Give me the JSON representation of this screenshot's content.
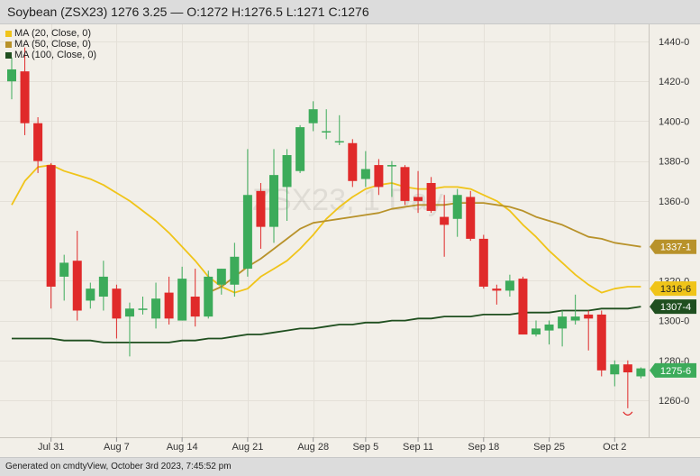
{
  "header": {
    "title": "Soybean (ZSX23) 1276 3.25 — O:1272 H:1276.5 L:1271 C:1276"
  },
  "legend": [
    {
      "label": "MA (20, Close, 0)",
      "color": "#f0c419"
    },
    {
      "label": "MA (50, Close, 0)",
      "color": "#b8922a"
    },
    {
      "label": "MA (100, Close, 0)",
      "color": "#1f4f1f"
    }
  ],
  "footer": {
    "text": "Generated on cmdtyView, October 3rd 2023, 7:45:52 pm"
  },
  "chart_data": {
    "type": "candlestick",
    "watermark": "ZSX23, 1 Day",
    "ylim": [
      1242,
      1450
    ],
    "y_ticks": [
      {
        "value": 1440,
        "label": "1440-0"
      },
      {
        "value": 1420,
        "label": "1420-0"
      },
      {
        "value": 1400,
        "label": "1400-0"
      },
      {
        "value": 1380,
        "label": "1380-0"
      },
      {
        "value": 1360,
        "label": "1360-0"
      },
      {
        "value": 1320,
        "label": "1320-0"
      },
      {
        "value": 1300,
        "label": "1300-0"
      },
      {
        "value": 1280,
        "label": "1280-0"
      },
      {
        "value": 1260,
        "label": "1260-0"
      }
    ],
    "x_ticks": [
      {
        "index": 3,
        "label": "Jul 31"
      },
      {
        "index": 8,
        "label": "Aug 7"
      },
      {
        "index": 13,
        "label": "Aug 14"
      },
      {
        "index": 18,
        "label": "Aug 21"
      },
      {
        "index": 23,
        "label": "Aug 28"
      },
      {
        "index": 27,
        "label": "Sep 5"
      },
      {
        "index": 31,
        "label": "Sep 11"
      },
      {
        "index": 36,
        "label": "Sep 18"
      },
      {
        "index": 41,
        "label": "Sep 25"
      },
      {
        "index": 46,
        "label": "Oct 2"
      }
    ],
    "candles": [
      {
        "o": 1420,
        "h": 1432,
        "l": 1411,
        "c": 1426
      },
      {
        "o": 1425,
        "h": 1437,
        "l": 1393,
        "c": 1399
      },
      {
        "o": 1399,
        "h": 1402,
        "l": 1374,
        "c": 1380
      },
      {
        "o": 1378,
        "h": 1379,
        "l": 1306,
        "c": 1317
      },
      {
        "o": 1322,
        "h": 1333,
        "l": 1310,
        "c": 1329
      },
      {
        "o": 1330,
        "h": 1345,
        "l": 1300,
        "c": 1305
      },
      {
        "o": 1310,
        "h": 1319,
        "l": 1306,
        "c": 1316
      },
      {
        "o": 1312,
        "h": 1330,
        "l": 1305,
        "c": 1322
      },
      {
        "o": 1316,
        "h": 1318,
        "l": 1291,
        "c": 1301
      },
      {
        "o": 1302,
        "h": 1309,
        "l": 1282,
        "c": 1306
      },
      {
        "o": 1306,
        "h": 1312,
        "l": 1303,
        "c": 1306
      },
      {
        "o": 1301,
        "h": 1319,
        "l": 1296,
        "c": 1311
      },
      {
        "o": 1314,
        "h": 1322,
        "l": 1298,
        "c": 1301
      },
      {
        "o": 1300,
        "h": 1327,
        "l": 1300,
        "c": 1321
      },
      {
        "o": 1312,
        "h": 1326,
        "l": 1297,
        "c": 1302
      },
      {
        "o": 1302,
        "h": 1325,
        "l": 1301,
        "c": 1322
      },
      {
        "o": 1318,
        "h": 1326,
        "l": 1313,
        "c": 1326
      },
      {
        "o": 1318,
        "h": 1339,
        "l": 1312,
        "c": 1332
      },
      {
        "o": 1326,
        "h": 1386,
        "l": 1322,
        "c": 1363
      },
      {
        "o": 1365,
        "h": 1369,
        "l": 1336,
        "c": 1347
      },
      {
        "o": 1347,
        "h": 1386,
        "l": 1339,
        "c": 1373
      },
      {
        "o": 1367,
        "h": 1386,
        "l": 1350,
        "c": 1383
      },
      {
        "o": 1375,
        "h": 1398,
        "l": 1374,
        "c": 1397
      },
      {
        "o": 1399,
        "h": 1410,
        "l": 1395,
        "c": 1406
      },
      {
        "o": 1395,
        "h": 1406,
        "l": 1391,
        "c": 1395
      },
      {
        "o": 1390,
        "h": 1403,
        "l": 1388,
        "c": 1390
      },
      {
        "o": 1389,
        "h": 1391,
        "l": 1367,
        "c": 1370
      },
      {
        "o": 1371,
        "h": 1385,
        "l": 1367,
        "c": 1376
      },
      {
        "o": 1378,
        "h": 1381,
        "l": 1363,
        "c": 1367
      },
      {
        "o": 1378,
        "h": 1380,
        "l": 1362,
        "c": 1378
      },
      {
        "o": 1377,
        "h": 1378,
        "l": 1358,
        "c": 1360
      },
      {
        "o": 1362,
        "h": 1375,
        "l": 1354,
        "c": 1360
      },
      {
        "o": 1369,
        "h": 1372,
        "l": 1354,
        "c": 1355
      },
      {
        "o": 1352,
        "h": 1363,
        "l": 1332,
        "c": 1348
      },
      {
        "o": 1351,
        "h": 1366,
        "l": 1342,
        "c": 1363
      },
      {
        "o": 1362,
        "h": 1365,
        "l": 1340,
        "c": 1341
      },
      {
        "o": 1341,
        "h": 1343,
        "l": 1316,
        "c": 1317
      },
      {
        "o": 1316,
        "h": 1318,
        "l": 1308,
        "c": 1315
      },
      {
        "o": 1315,
        "h": 1323,
        "l": 1312,
        "c": 1320
      },
      {
        "o": 1321,
        "h": 1322,
        "l": 1293,
        "c": 1293
      },
      {
        "o": 1293,
        "h": 1300,
        "l": 1292,
        "c": 1296
      },
      {
        "o": 1295,
        "h": 1300,
        "l": 1288,
        "c": 1298
      },
      {
        "o": 1296,
        "h": 1305,
        "l": 1287,
        "c": 1302
      },
      {
        "o": 1300,
        "h": 1313,
        "l": 1298,
        "c": 1302
      },
      {
        "o": 1303,
        "h": 1305,
        "l": 1285,
        "c": 1301
      },
      {
        "o": 1303,
        "h": 1305,
        "l": 1272,
        "c": 1275
      },
      {
        "o": 1273,
        "h": 1280,
        "l": 1267,
        "c": 1278
      },
      {
        "o": 1278,
        "h": 1280,
        "l": 1256,
        "c": 1274
      },
      {
        "o": 1272,
        "h": 1276.5,
        "l": 1271,
        "c": 1276
      }
    ],
    "series": [
      {
        "name": "MA (20, Close, 0)",
        "color": "#f0c419",
        "values": [
          1358,
          1370,
          1377,
          1378,
          1375,
          1373,
          1371,
          1368,
          1364,
          1360,
          1355,
          1350,
          1344,
          1337,
          1330,
          1322,
          1317,
          1314,
          1316,
          1322,
          1326,
          1330,
          1336,
          1343,
          1351,
          1357,
          1362,
          1366,
          1368,
          1369,
          1367,
          1366,
          1366,
          1367,
          1367,
          1366,
          1363,
          1360,
          1355,
          1348,
          1342,
          1335,
          1329,
          1323,
          1318,
          1314,
          1316,
          1317,
          1317
        ]
      },
      {
        "name": "MA (50, Close, 0)",
        "color": "#b8922a",
        "values": [
          null,
          null,
          null,
          null,
          null,
          null,
          null,
          null,
          null,
          null,
          null,
          null,
          null,
          null,
          null,
          1314,
          1317,
          1322,
          1327,
          1331,
          1336,
          1341,
          1346,
          1349,
          1350,
          1351,
          1352,
          1353,
          1354,
          1356,
          1357,
          1358,
          1358,
          1358,
          1359,
          1359,
          1359,
          1358,
          1357,
          1355,
          1352,
          1350,
          1348,
          1345,
          1342,
          1341,
          1339,
          1338,
          1337
        ]
      },
      {
        "name": "MA (100, Close, 0)",
        "color": "#1f4f1f",
        "values": [
          1291,
          1291,
          1291,
          1291,
          1290,
          1290,
          1290,
          1289,
          1289,
          1289,
          1289,
          1289,
          1289,
          1290,
          1290,
          1291,
          1291,
          1292,
          1293,
          1293,
          1294,
          1295,
          1296,
          1296,
          1297,
          1298,
          1298,
          1299,
          1299,
          1300,
          1300,
          1301,
          1301,
          1302,
          1302,
          1302,
          1303,
          1303,
          1303,
          1304,
          1304,
          1304,
          1305,
          1305,
          1305,
          1306,
          1306,
          1306,
          1307
        ]
      }
    ],
    "price_badges": [
      {
        "value": 1337,
        "label": "1337-1",
        "bg": "#b8922a",
        "fg": "#ffffff"
      },
      {
        "value": 1316,
        "label": "1316-6",
        "bg": "#f0c419",
        "fg": "#222222"
      },
      {
        "value": 1307,
        "label": "1307-4",
        "bg": "#1f4f1f",
        "fg": "#ffffff"
      },
      {
        "value": 1275,
        "label": "1275-6",
        "bg": "#3cab5a",
        "fg": "#ffffff"
      }
    ],
    "up_color": "#3cab5a",
    "down_color": "#e02a2a",
    "grid": true
  }
}
